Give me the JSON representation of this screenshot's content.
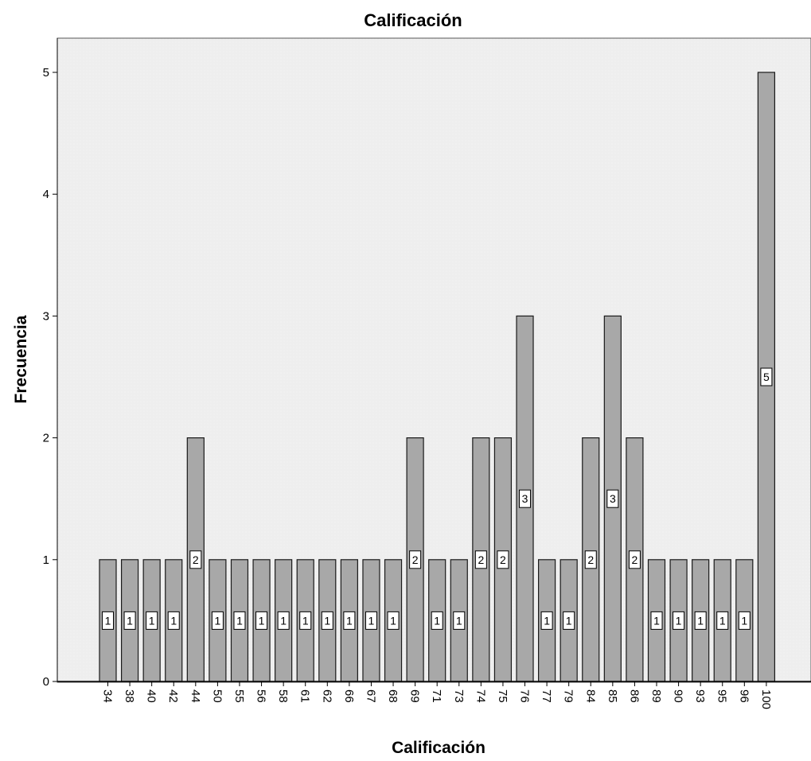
{
  "chart_data": {
    "type": "bar",
    "title": "Calificación",
    "xlabel": "Calificación",
    "ylabel": "Frecuencia",
    "categories": [
      "34",
      "38",
      "40",
      "42",
      "44",
      "50",
      "55",
      "56",
      "58",
      "61",
      "62",
      "66",
      "67",
      "68",
      "69",
      "71",
      "73",
      "74",
      "75",
      "76",
      "77",
      "79",
      "84",
      "85",
      "86",
      "89",
      "90",
      "93",
      "95",
      "96",
      "100"
    ],
    "values": [
      1,
      1,
      1,
      1,
      2,
      1,
      1,
      1,
      1,
      1,
      1,
      1,
      1,
      1,
      2,
      1,
      1,
      2,
      2,
      3,
      1,
      1,
      2,
      3,
      2,
      1,
      1,
      1,
      1,
      1,
      5
    ],
    "yticks": [
      "0",
      "1",
      "2",
      "3",
      "4",
      "5"
    ],
    "ylim": [
      0,
      5.25
    ],
    "grid": false,
    "data_labels": true,
    "colors": {
      "bar_fill": "#a8a8a8",
      "bar_stroke": "#1a1a1a",
      "plot_bg": "#eeeeee",
      "label_box": "#ffffff"
    }
  }
}
